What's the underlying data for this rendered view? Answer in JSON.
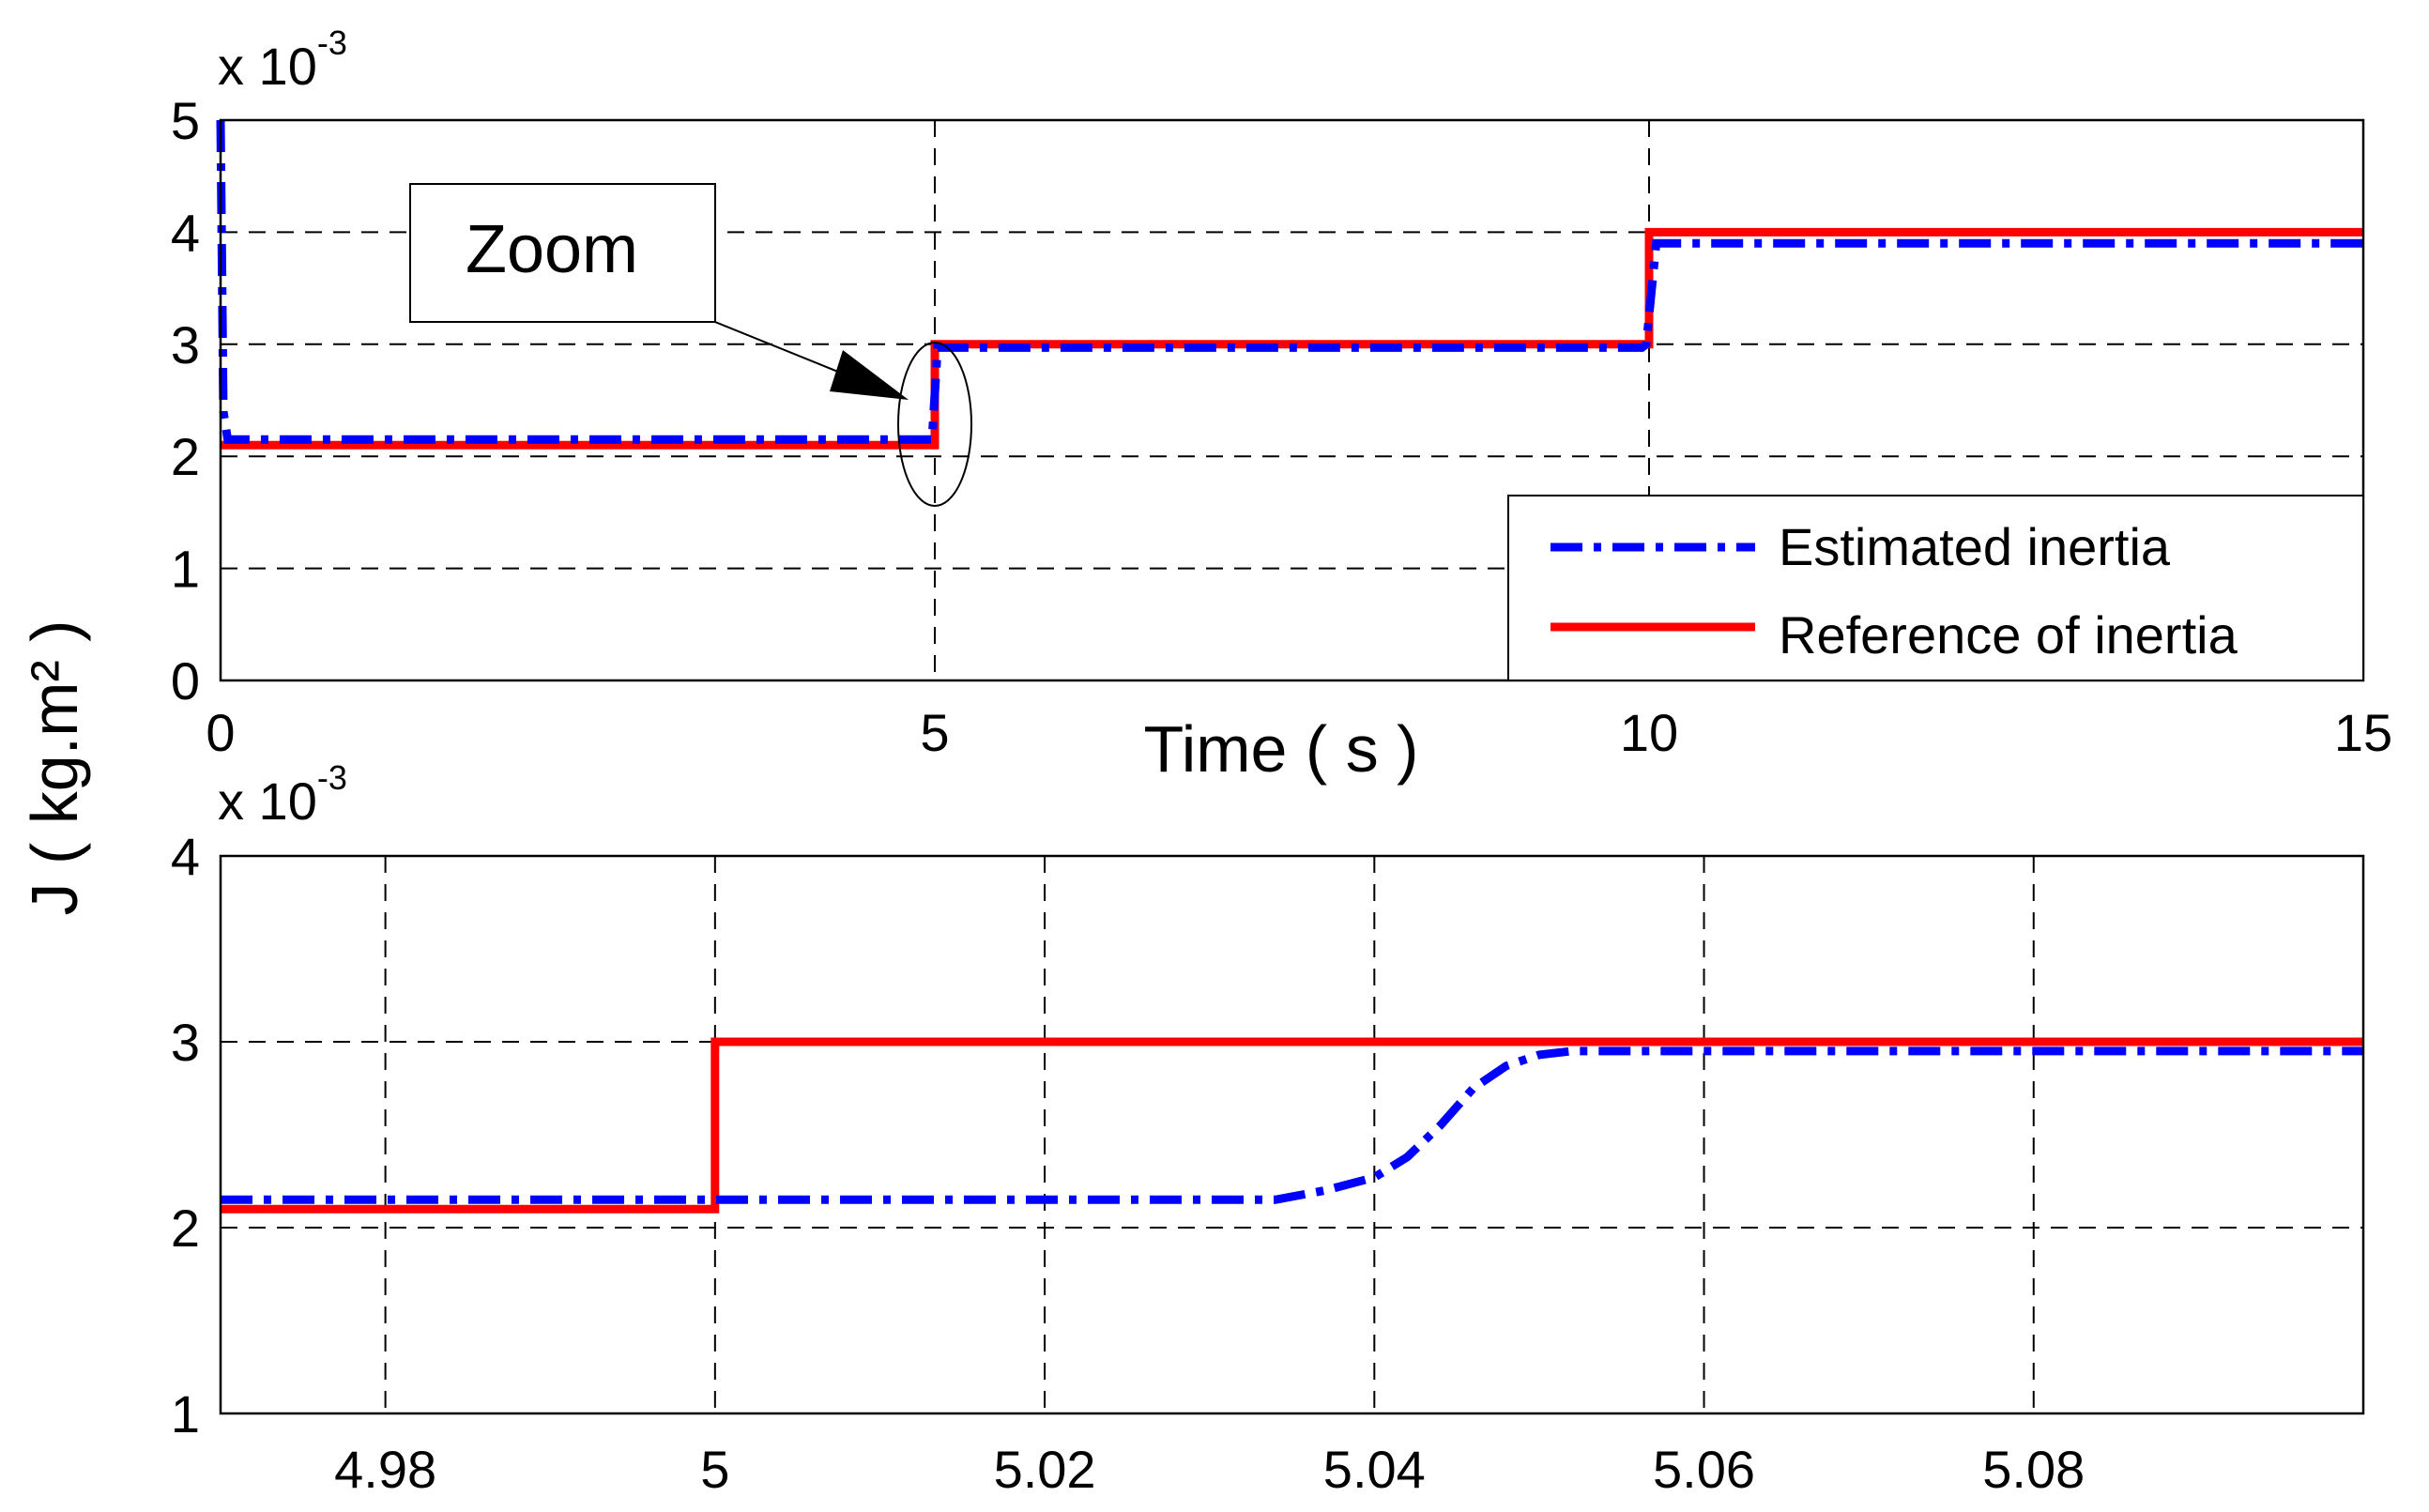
{
  "ylabel": "J ( kg.m² )",
  "chart_data": [
    {
      "type": "line",
      "xlabel": "Time ( s )",
      "ylabel": "",
      "y_multiplier_label": {
        "base": "x 10",
        "exponent": "-3"
      },
      "xlim": [
        0,
        15
      ],
      "ylim": [
        0,
        5
      ],
      "xticks": [
        0,
        5,
        10,
        15
      ],
      "yticks": [
        0,
        1,
        2,
        3,
        4,
        5
      ],
      "grid": true,
      "legend_position": "bottom-right",
      "annotation": "Zoom",
      "series": [
        {
          "name": "Estimated inertia",
          "color": "#0000ff",
          "style": "dashdot",
          "x": [
            0,
            0.02,
            0.05,
            4.95,
            4.98,
            5.02,
            9.95,
            9.98,
            10.05,
            15
          ],
          "y": [
            5.0,
            2.4,
            2.15,
            2.15,
            2.15,
            2.97,
            2.97,
            3.0,
            3.9,
            3.9
          ]
        },
        {
          "name": "Reference of inertia",
          "color": "#ff0000",
          "style": "solid",
          "x": [
            0,
            5,
            5,
            10,
            10,
            15
          ],
          "y": [
            2.1,
            2.1,
            3.0,
            3.0,
            4.0,
            4.0
          ]
        }
      ]
    },
    {
      "type": "line",
      "xlabel": "",
      "ylabel": "",
      "y_multiplier_label": {
        "base": "x 10",
        "exponent": "-3"
      },
      "xlim": [
        4.97,
        5.1
      ],
      "ylim": [
        1,
        4
      ],
      "xticks": [
        4.98,
        5,
        5.02,
        5.04,
        5.06,
        5.08
      ],
      "xtick_labels": [
        "4.98",
        "5",
        "5.02",
        "5.04",
        "5.06",
        "5.08"
      ],
      "yticks": [
        1,
        2,
        3,
        4
      ],
      "grid": true,
      "series": [
        {
          "name": "Estimated inertia",
          "color": "#0000ff",
          "style": "dashdot",
          "x": [
            4.97,
            5.034,
            5.037,
            5.04,
            5.042,
            5.044,
            5.046,
            5.048,
            5.05,
            5.052,
            5.1
          ],
          "y": [
            2.15,
            2.15,
            2.2,
            2.27,
            2.38,
            2.55,
            2.75,
            2.87,
            2.93,
            2.95,
            2.95
          ]
        },
        {
          "name": "Reference of inertia",
          "color": "#ff0000",
          "style": "solid",
          "x": [
            4.97,
            5.0,
            5.0,
            5.1
          ],
          "y": [
            2.1,
            2.1,
            3.0,
            3.0
          ]
        }
      ]
    }
  ]
}
